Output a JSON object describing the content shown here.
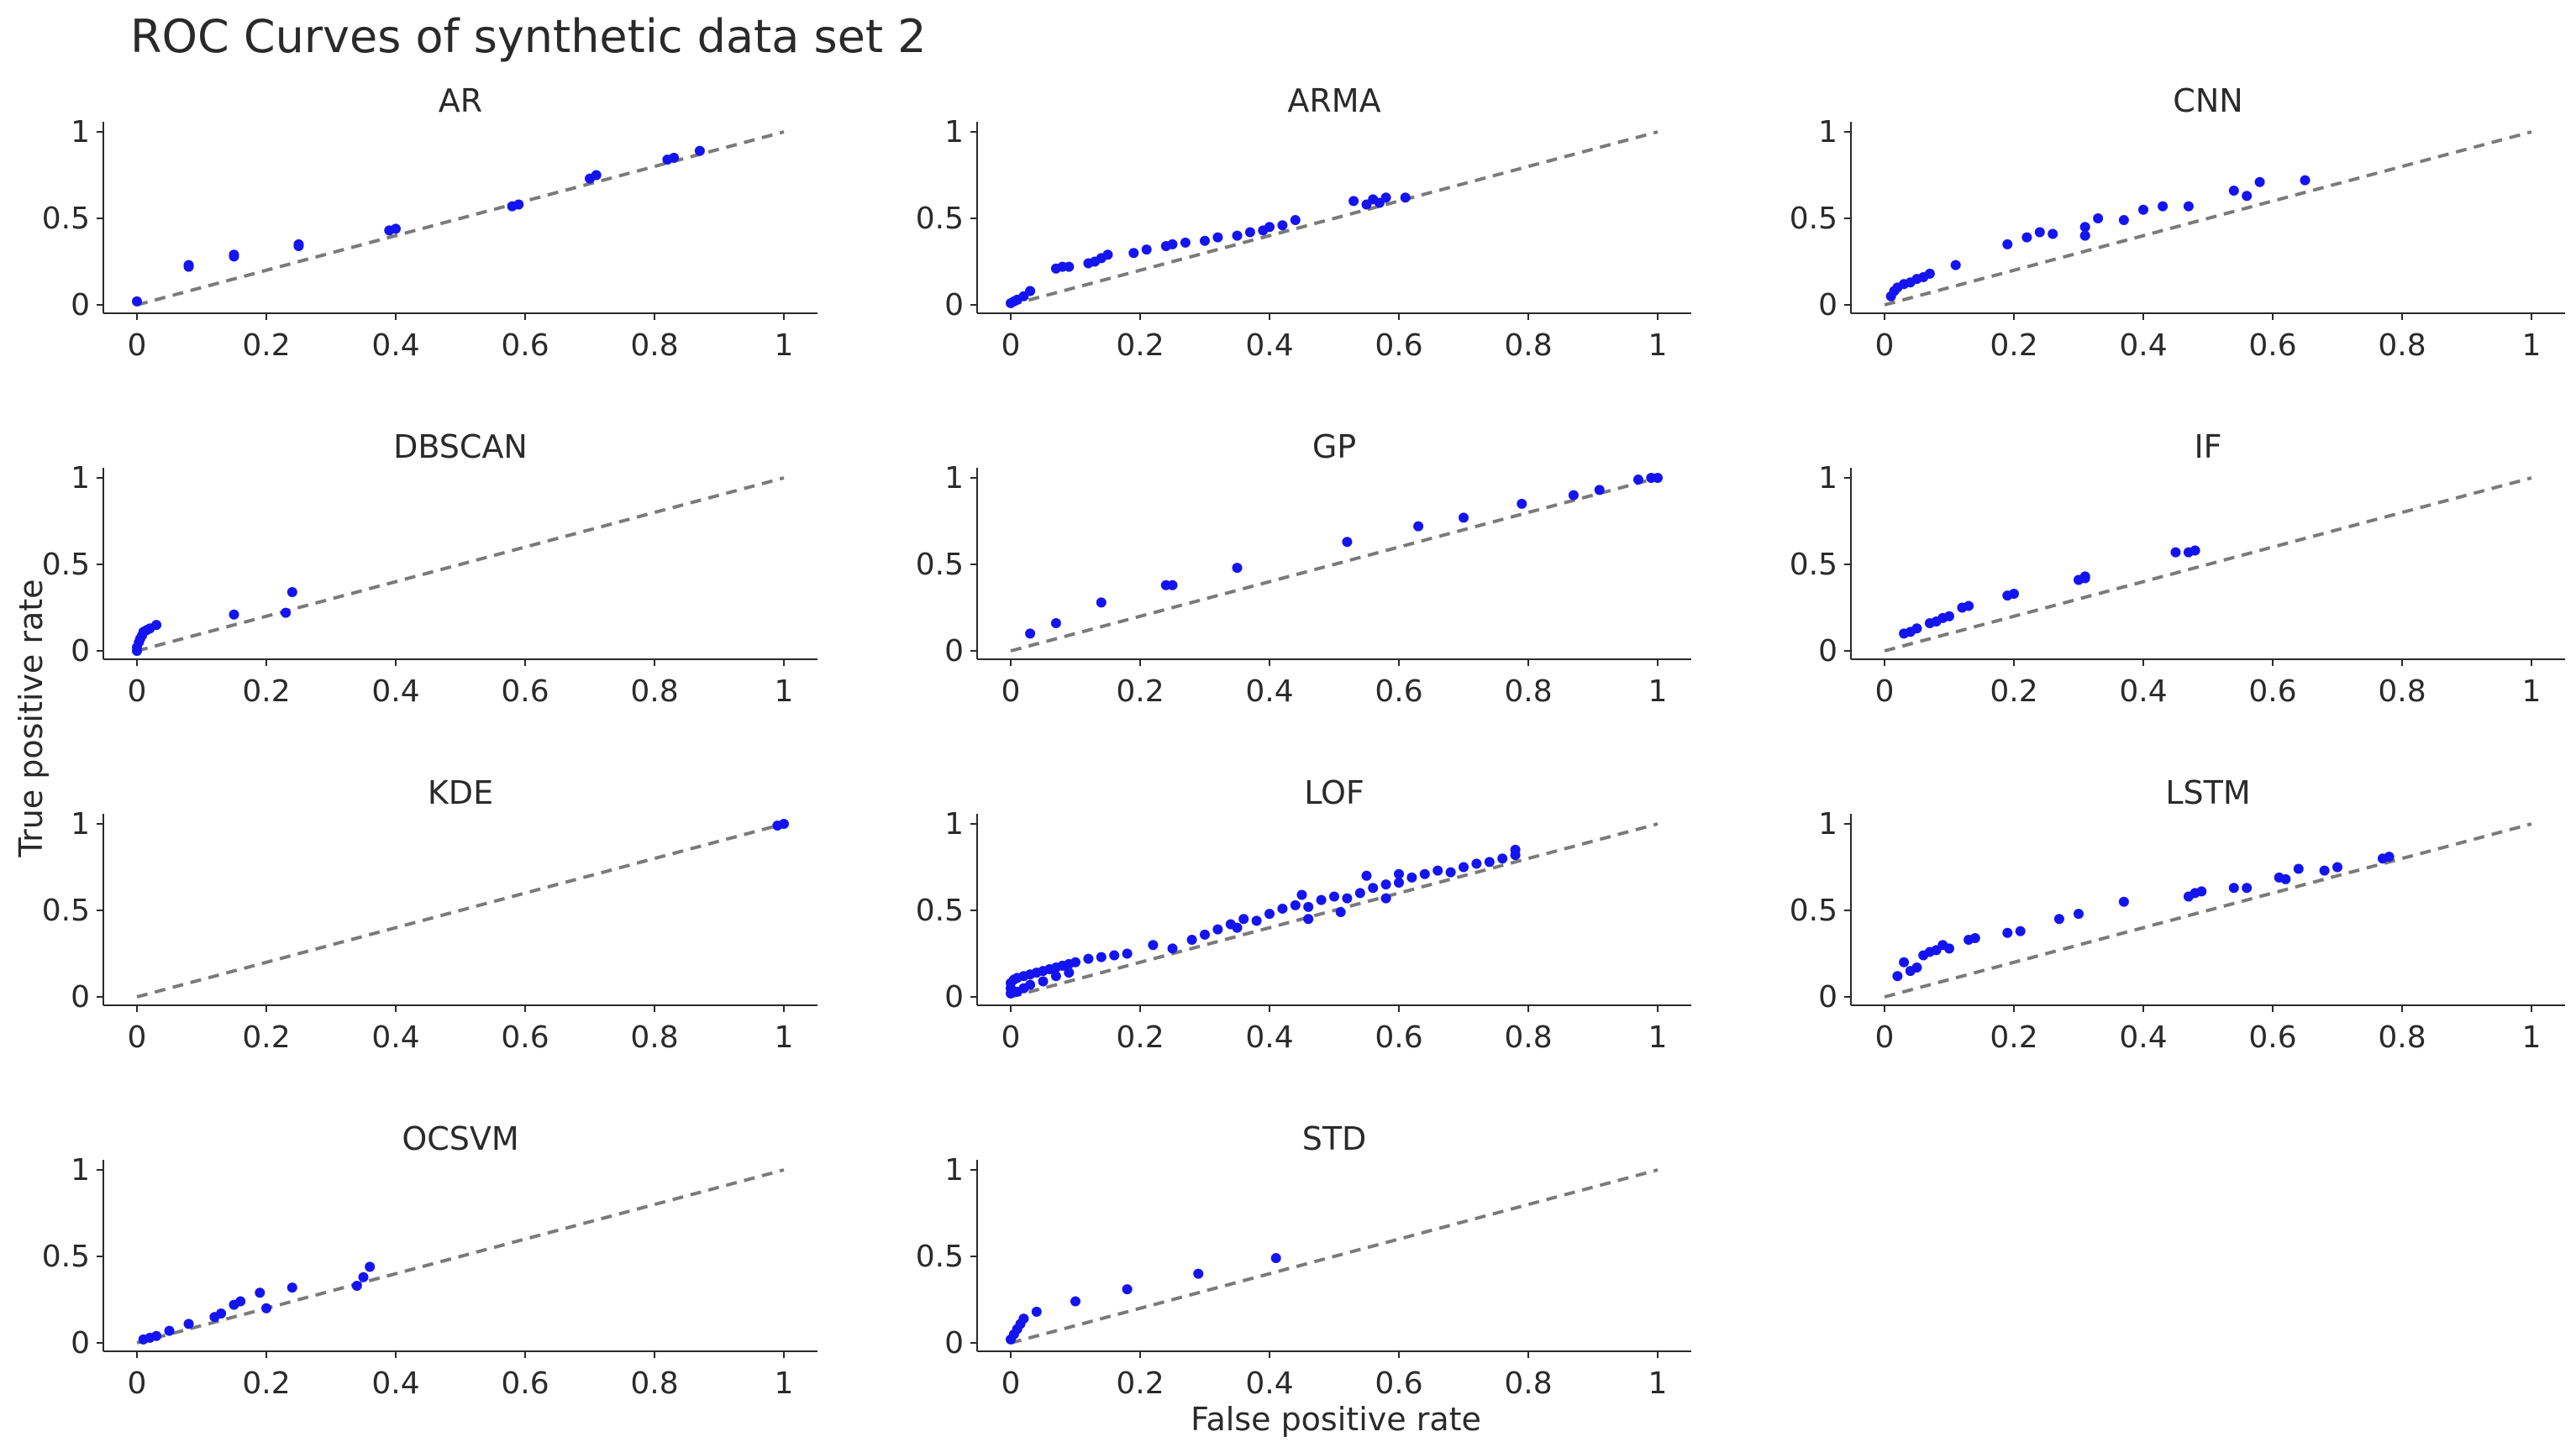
{
  "chart_data": {
    "type": "scatter",
    "title": "ROC Curves of synthetic data set 2",
    "xlabel": "False positive rate",
    "ylabel": "True positive rate",
    "xlim": [
      0,
      1
    ],
    "ylim": [
      0,
      1
    ],
    "xticks": [
      "0",
      "0.2",
      "0.4",
      "0.6",
      "0.8",
      "1"
    ],
    "yticks": [
      "0",
      "0.5",
      "1"
    ],
    "reference_line": "diagonal y = x (dashed)",
    "point_color": "#1414f0",
    "reference_color": "#7a7a7a",
    "panels": [
      {
        "name": "AR",
        "points": [
          [
            0.0,
            0.02
          ],
          [
            0.08,
            0.22
          ],
          [
            0.08,
            0.23
          ],
          [
            0.15,
            0.28
          ],
          [
            0.15,
            0.29
          ],
          [
            0.25,
            0.34
          ],
          [
            0.25,
            0.35
          ],
          [
            0.39,
            0.43
          ],
          [
            0.4,
            0.44
          ],
          [
            0.58,
            0.57
          ],
          [
            0.59,
            0.58
          ],
          [
            0.7,
            0.73
          ],
          [
            0.71,
            0.75
          ],
          [
            0.82,
            0.84
          ],
          [
            0.83,
            0.85
          ],
          [
            0.87,
            0.89
          ]
        ]
      },
      {
        "name": "ARMA",
        "points": [
          [
            0.0,
            0.01
          ],
          [
            0.005,
            0.02
          ],
          [
            0.01,
            0.03
          ],
          [
            0.02,
            0.05
          ],
          [
            0.03,
            0.08
          ],
          [
            0.07,
            0.21
          ],
          [
            0.08,
            0.22
          ],
          [
            0.09,
            0.22
          ],
          [
            0.12,
            0.24
          ],
          [
            0.13,
            0.25
          ],
          [
            0.14,
            0.27
          ],
          [
            0.15,
            0.29
          ],
          [
            0.19,
            0.3
          ],
          [
            0.21,
            0.32
          ],
          [
            0.24,
            0.34
          ],
          [
            0.25,
            0.35
          ],
          [
            0.27,
            0.36
          ],
          [
            0.3,
            0.37
          ],
          [
            0.32,
            0.39
          ],
          [
            0.35,
            0.4
          ],
          [
            0.37,
            0.42
          ],
          [
            0.39,
            0.43
          ],
          [
            0.4,
            0.45
          ],
          [
            0.42,
            0.46
          ],
          [
            0.44,
            0.49
          ],
          [
            0.53,
            0.6
          ],
          [
            0.55,
            0.58
          ],
          [
            0.56,
            0.61
          ],
          [
            0.57,
            0.59
          ],
          [
            0.58,
            0.62
          ],
          [
            0.61,
            0.62
          ]
        ]
      },
      {
        "name": "CNN",
        "points": [
          [
            0.01,
            0.05
          ],
          [
            0.015,
            0.08
          ],
          [
            0.02,
            0.1
          ],
          [
            0.03,
            0.12
          ],
          [
            0.04,
            0.13
          ],
          [
            0.05,
            0.15
          ],
          [
            0.06,
            0.16
          ],
          [
            0.07,
            0.18
          ],
          [
            0.11,
            0.23
          ],
          [
            0.19,
            0.35
          ],
          [
            0.22,
            0.39
          ],
          [
            0.24,
            0.42
          ],
          [
            0.26,
            0.41
          ],
          [
            0.31,
            0.45
          ],
          [
            0.31,
            0.4
          ],
          [
            0.33,
            0.5
          ],
          [
            0.37,
            0.49
          ],
          [
            0.4,
            0.55
          ],
          [
            0.43,
            0.57
          ],
          [
            0.47,
            0.57
          ],
          [
            0.54,
            0.66
          ],
          [
            0.56,
            0.63
          ],
          [
            0.58,
            0.71
          ],
          [
            0.65,
            0.72
          ]
        ]
      },
      {
        "name": "DBSCAN",
        "points": [
          [
            0.0,
            0.0
          ],
          [
            0.0,
            0.02
          ],
          [
            0.003,
            0.05
          ],
          [
            0.005,
            0.07
          ],
          [
            0.008,
            0.09
          ],
          [
            0.01,
            0.11
          ],
          [
            0.015,
            0.12
          ],
          [
            0.02,
            0.13
          ],
          [
            0.03,
            0.15
          ],
          [
            0.15,
            0.21
          ],
          [
            0.23,
            0.22
          ],
          [
            0.24,
            0.34
          ]
        ]
      },
      {
        "name": "GP",
        "points": [
          [
            0.03,
            0.1
          ],
          [
            0.07,
            0.16
          ],
          [
            0.14,
            0.28
          ],
          [
            0.24,
            0.38
          ],
          [
            0.25,
            0.38
          ],
          [
            0.35,
            0.48
          ],
          [
            0.52,
            0.63
          ],
          [
            0.63,
            0.72
          ],
          [
            0.7,
            0.77
          ],
          [
            0.79,
            0.85
          ],
          [
            0.87,
            0.9
          ],
          [
            0.91,
            0.93
          ],
          [
            0.97,
            0.99
          ],
          [
            0.99,
            1.0
          ],
          [
            1.0,
            1.0
          ]
        ]
      },
      {
        "name": "IF",
        "points": [
          [
            0.03,
            0.1
          ],
          [
            0.04,
            0.11
          ],
          [
            0.05,
            0.13
          ],
          [
            0.07,
            0.16
          ],
          [
            0.08,
            0.17
          ],
          [
            0.09,
            0.19
          ],
          [
            0.1,
            0.2
          ],
          [
            0.12,
            0.25
          ],
          [
            0.13,
            0.26
          ],
          [
            0.19,
            0.32
          ],
          [
            0.2,
            0.33
          ],
          [
            0.3,
            0.41
          ],
          [
            0.31,
            0.42
          ],
          [
            0.31,
            0.43
          ],
          [
            0.45,
            0.57
          ],
          [
            0.47,
            0.57
          ],
          [
            0.48,
            0.58
          ]
        ]
      },
      {
        "name": "KDE",
        "points": [
          [
            0.99,
            0.99
          ],
          [
            1.0,
            1.0
          ]
        ]
      },
      {
        "name": "LOF",
        "points": [
          [
            0.0,
            0.02
          ],
          [
            0.0,
            0.05
          ],
          [
            0.0,
            0.08
          ],
          [
            0.005,
            0.1
          ],
          [
            0.01,
            0.11
          ],
          [
            0.02,
            0.12
          ],
          [
            0.03,
            0.13
          ],
          [
            0.04,
            0.14
          ],
          [
            0.05,
            0.15
          ],
          [
            0.06,
            0.16
          ],
          [
            0.07,
            0.17
          ],
          [
            0.08,
            0.18
          ],
          [
            0.09,
            0.19
          ],
          [
            0.1,
            0.2
          ],
          [
            0.12,
            0.22
          ],
          [
            0.14,
            0.23
          ],
          [
            0.16,
            0.24
          ],
          [
            0.18,
            0.25
          ],
          [
            0.01,
            0.03
          ],
          [
            0.02,
            0.05
          ],
          [
            0.03,
            0.07
          ],
          [
            0.05,
            0.09
          ],
          [
            0.07,
            0.12
          ],
          [
            0.09,
            0.14
          ],
          [
            0.22,
            0.3
          ],
          [
            0.25,
            0.28
          ],
          [
            0.28,
            0.33
          ],
          [
            0.3,
            0.36
          ],
          [
            0.32,
            0.39
          ],
          [
            0.34,
            0.42
          ],
          [
            0.36,
            0.45
          ],
          [
            0.38,
            0.44
          ],
          [
            0.4,
            0.48
          ],
          [
            0.42,
            0.51
          ],
          [
            0.44,
            0.53
          ],
          [
            0.46,
            0.52
          ],
          [
            0.48,
            0.56
          ],
          [
            0.5,
            0.58
          ],
          [
            0.52,
            0.57
          ],
          [
            0.54,
            0.6
          ],
          [
            0.56,
            0.63
          ],
          [
            0.58,
            0.65
          ],
          [
            0.6,
            0.66
          ],
          [
            0.62,
            0.69
          ],
          [
            0.64,
            0.71
          ],
          [
            0.66,
            0.73
          ],
          [
            0.68,
            0.72
          ],
          [
            0.7,
            0.75
          ],
          [
            0.72,
            0.77
          ],
          [
            0.74,
            0.78
          ],
          [
            0.76,
            0.8
          ],
          [
            0.78,
            0.82
          ],
          [
            0.78,
            0.85
          ],
          [
            0.55,
            0.7
          ],
          [
            0.6,
            0.71
          ],
          [
            0.45,
            0.59
          ],
          [
            0.35,
            0.4
          ],
          [
            0.46,
            0.45
          ],
          [
            0.51,
            0.49
          ],
          [
            0.58,
            0.57
          ]
        ]
      },
      {
        "name": "LSTM",
        "points": [
          [
            0.02,
            0.12
          ],
          [
            0.03,
            0.2
          ],
          [
            0.04,
            0.15
          ],
          [
            0.05,
            0.17
          ],
          [
            0.06,
            0.24
          ],
          [
            0.07,
            0.26
          ],
          [
            0.08,
            0.27
          ],
          [
            0.09,
            0.3
          ],
          [
            0.1,
            0.28
          ],
          [
            0.13,
            0.33
          ],
          [
            0.14,
            0.34
          ],
          [
            0.19,
            0.37
          ],
          [
            0.21,
            0.38
          ],
          [
            0.27,
            0.45
          ],
          [
            0.3,
            0.48
          ],
          [
            0.37,
            0.55
          ],
          [
            0.47,
            0.58
          ],
          [
            0.48,
            0.6
          ],
          [
            0.49,
            0.61
          ],
          [
            0.54,
            0.63
          ],
          [
            0.56,
            0.63
          ],
          [
            0.61,
            0.69
          ],
          [
            0.62,
            0.68
          ],
          [
            0.64,
            0.74
          ],
          [
            0.68,
            0.73
          ],
          [
            0.7,
            0.75
          ],
          [
            0.77,
            0.8
          ],
          [
            0.78,
            0.81
          ]
        ]
      },
      {
        "name": "OCSVM",
        "points": [
          [
            0.01,
            0.02
          ],
          [
            0.02,
            0.03
          ],
          [
            0.03,
            0.04
          ],
          [
            0.05,
            0.07
          ],
          [
            0.08,
            0.11
          ],
          [
            0.12,
            0.15
          ],
          [
            0.13,
            0.17
          ],
          [
            0.15,
            0.22
          ],
          [
            0.16,
            0.24
          ],
          [
            0.19,
            0.29
          ],
          [
            0.2,
            0.2
          ],
          [
            0.24,
            0.32
          ],
          [
            0.34,
            0.33
          ],
          [
            0.35,
            0.38
          ],
          [
            0.36,
            0.44
          ]
        ]
      },
      {
        "name": "STD",
        "points": [
          [
            0.0,
            0.02
          ],
          [
            0.005,
            0.05
          ],
          [
            0.01,
            0.08
          ],
          [
            0.015,
            0.11
          ],
          [
            0.02,
            0.14
          ],
          [
            0.04,
            0.18
          ],
          [
            0.1,
            0.24
          ],
          [
            0.18,
            0.31
          ],
          [
            0.29,
            0.4
          ],
          [
            0.41,
            0.49
          ]
        ]
      }
    ]
  }
}
